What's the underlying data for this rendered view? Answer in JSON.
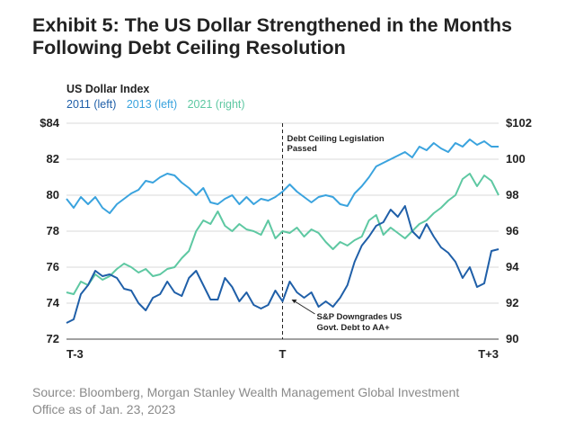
{
  "title_lines": [
    "Exhibit 5: The US Dollar Strengthened in the Months",
    "Following Debt Ceiling Resolution"
  ],
  "legend_title": "US Dollar Index",
  "source_lines": [
    "Source: Bloomberg, Morgan Stanley Wealth Management Global Investment",
    "Office as of Jan. 23, 2023"
  ],
  "chart_data": {
    "type": "line",
    "x_ticks": [
      "T-3",
      "T",
      "T+3"
    ],
    "x_range": [
      -3,
      3
    ],
    "y_left": {
      "ticks": [
        "$84",
        "82",
        "80",
        "78",
        "76",
        "74",
        "72"
      ],
      "range": [
        72,
        84
      ]
    },
    "y_right": {
      "ticks": [
        "$102",
        "100",
        "98",
        "96",
        "94",
        "92",
        "90"
      ],
      "range": [
        90,
        102
      ]
    },
    "grid": "horizontal",
    "legend_placement": "top-left",
    "series": [
      {
        "name": "2011 (left)",
        "axis": "left",
        "color": "#1f5fa8",
        "x": [
          -3.0,
          -2.9,
          -2.8,
          -2.7,
          -2.6,
          -2.5,
          -2.4,
          -2.3,
          -2.2,
          -2.1,
          -2.0,
          -1.9,
          -1.8,
          -1.7,
          -1.6,
          -1.5,
          -1.4,
          -1.3,
          -1.2,
          -1.1,
          -1.0,
          -0.9,
          -0.8,
          -0.7,
          -0.6,
          -0.5,
          -0.4,
          -0.3,
          -0.2,
          -0.1,
          0.0,
          0.1,
          0.2,
          0.3,
          0.4,
          0.5,
          0.6,
          0.7,
          0.8,
          0.9,
          1.0,
          1.1,
          1.2,
          1.3,
          1.4,
          1.5,
          1.6,
          1.7,
          1.8,
          1.9,
          2.0,
          2.1,
          2.2,
          2.3,
          2.4,
          2.5,
          2.6,
          2.7,
          2.8,
          2.9,
          3.0
        ],
        "values": [
          72.9,
          73.1,
          74.5,
          75.0,
          75.8,
          75.5,
          75.6,
          75.4,
          74.8,
          74.7,
          74.0,
          73.6,
          74.3,
          74.5,
          75.2,
          74.6,
          74.4,
          75.4,
          75.8,
          75.0,
          74.2,
          74.2,
          75.4,
          74.9,
          74.1,
          74.6,
          73.9,
          73.7,
          73.9,
          74.7,
          74.1,
          75.2,
          74.6,
          74.3,
          74.6,
          73.8,
          74.1,
          73.8,
          74.3,
          75.0,
          76.3,
          77.2,
          77.7,
          78.3,
          78.5,
          79.2,
          78.8,
          79.4,
          78.0,
          77.6,
          78.4,
          77.7,
          77.1,
          76.8,
          76.3,
          75.4,
          76.0,
          74.9,
          75.1,
          76.9,
          77.0
        ]
      },
      {
        "name": "2013 (left)",
        "axis": "left",
        "color": "#3aa3de",
        "x": [
          -3.0,
          -2.9,
          -2.8,
          -2.7,
          -2.6,
          -2.5,
          -2.4,
          -2.3,
          -2.2,
          -2.1,
          -2.0,
          -1.9,
          -1.8,
          -1.7,
          -1.6,
          -1.5,
          -1.4,
          -1.3,
          -1.2,
          -1.1,
          -1.0,
          -0.9,
          -0.8,
          -0.7,
          -0.6,
          -0.5,
          -0.4,
          -0.3,
          -0.2,
          -0.1,
          0.0,
          0.1,
          0.2,
          0.3,
          0.4,
          0.5,
          0.6,
          0.7,
          0.8,
          0.9,
          1.0,
          1.1,
          1.2,
          1.3,
          1.4,
          1.5,
          1.6,
          1.7,
          1.8,
          1.9,
          2.0,
          2.1,
          2.2,
          2.3,
          2.4,
          2.5,
          2.6,
          2.7,
          2.8,
          2.9,
          3.0
        ],
        "values": [
          79.8,
          79.3,
          79.9,
          79.5,
          79.9,
          79.3,
          79.0,
          79.5,
          79.8,
          80.1,
          80.3,
          80.8,
          80.7,
          81.0,
          81.2,
          81.1,
          80.7,
          80.4,
          80.0,
          80.4,
          79.6,
          79.5,
          79.8,
          80.0,
          79.5,
          79.9,
          79.5,
          79.8,
          79.7,
          79.9,
          80.2,
          80.6,
          80.2,
          79.9,
          79.6,
          79.9,
          80.0,
          79.9,
          79.5,
          79.4,
          80.1,
          80.5,
          81.0,
          81.6,
          81.8,
          82.0,
          82.2,
          82.4,
          82.1,
          82.7,
          82.5,
          82.9,
          82.6,
          82.4,
          82.9,
          82.7,
          83.1,
          82.8,
          83.0,
          82.7,
          82.7
        ]
      },
      {
        "name": "2021 (right)",
        "axis": "right",
        "color": "#5ec8a2",
        "x": [
          -3.0,
          -2.9,
          -2.8,
          -2.7,
          -2.6,
          -2.5,
          -2.4,
          -2.3,
          -2.2,
          -2.1,
          -2.0,
          -1.9,
          -1.8,
          -1.7,
          -1.6,
          -1.5,
          -1.4,
          -1.3,
          -1.2,
          -1.1,
          -1.0,
          -0.9,
          -0.8,
          -0.7,
          -0.6,
          -0.5,
          -0.4,
          -0.3,
          -0.2,
          -0.1,
          0.0,
          0.1,
          0.2,
          0.3,
          0.4,
          0.5,
          0.6,
          0.7,
          0.8,
          0.9,
          1.0,
          1.1,
          1.2,
          1.3,
          1.4,
          1.5,
          1.6,
          1.7,
          1.8,
          1.9,
          2.0,
          2.1,
          2.2,
          2.3,
          2.4,
          2.5,
          2.6,
          2.7,
          2.8,
          2.9,
          3.0
        ],
        "values": [
          92.6,
          92.5,
          93.2,
          93.0,
          93.6,
          93.3,
          93.5,
          93.9,
          94.2,
          94.0,
          93.7,
          93.9,
          93.5,
          93.6,
          93.9,
          94.0,
          94.5,
          94.9,
          96.0,
          96.6,
          96.4,
          97.1,
          96.3,
          96.0,
          96.4,
          96.1,
          96.0,
          95.8,
          96.6,
          95.6,
          96.0,
          95.9,
          96.2,
          95.7,
          96.1,
          95.9,
          95.4,
          95.0,
          95.4,
          95.2,
          95.5,
          95.7,
          96.6,
          96.9,
          95.8,
          96.2,
          95.9,
          95.6,
          96.0,
          96.4,
          96.6,
          97.0,
          97.3,
          97.7,
          98.0,
          98.9,
          99.2,
          98.5,
          99.1,
          98.8,
          98.0
        ]
      }
    ],
    "annotations": [
      {
        "id": "debt-ceiling",
        "x": 0,
        "lines": [
          "Debt Ceiling Legislation",
          "Passed"
        ]
      },
      {
        "id": "sp-downgrade",
        "x": 0.1,
        "y": 74.3,
        "axis": "left",
        "lines": [
          "S&P Downgrades US",
          "Govt. Debt to AA+"
        ]
      }
    ]
  }
}
